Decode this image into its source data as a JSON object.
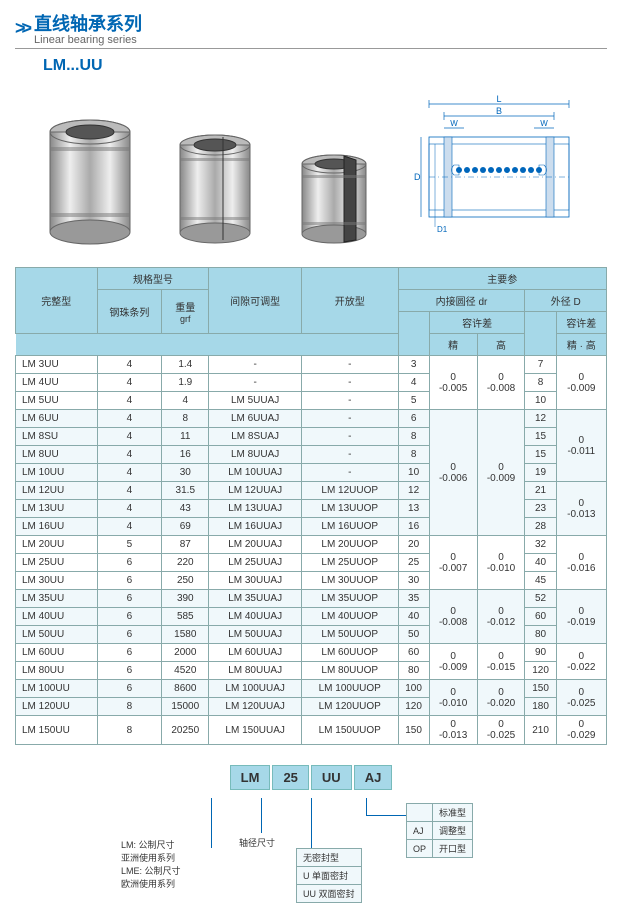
{
  "header": {
    "title_cn": "直线轴承系列",
    "title_en": "Linear bearing series",
    "model": "LM...UU"
  },
  "diagram_labels": {
    "L": "L",
    "B": "B",
    "W": "W",
    "D": "D",
    "D1": "D1"
  },
  "table": {
    "headers": {
      "complete": "完整型",
      "spec_model": "规格型号",
      "adjustable": "间隙可调型",
      "open": "开放型",
      "main_param": "主要参",
      "ball_rows": "钢珠条列",
      "weight": "重量",
      "weight_unit": "grf",
      "inner_dia": "内接圆径   dr",
      "outer_dia": "外径   D",
      "tolerance": "容许差",
      "precision": "精",
      "high": "高",
      "prec_high": "精 · 高"
    },
    "rows": [
      {
        "m": "LM 3UU",
        "b": "4",
        "w": "1.4",
        "aj": "-",
        "op": "-",
        "dr": "3",
        "d": "7"
      },
      {
        "m": "LM 4UU",
        "b": "4",
        "w": "1.9",
        "aj": "-",
        "op": "-",
        "dr": "4",
        "d": "8"
      },
      {
        "m": "LM 5UU",
        "b": "4",
        "w": "4",
        "aj": "LM 5UUAJ",
        "op": "-",
        "dr": "5",
        "d": "10"
      },
      {
        "m": "LM 6UU",
        "b": "4",
        "w": "8",
        "aj": "LM 6UUAJ",
        "op": "-",
        "dr": "6",
        "d": "12"
      },
      {
        "m": "LM 8SU",
        "b": "4",
        "w": "11",
        "aj": "LM 8SUAJ",
        "op": "-",
        "dr": "8",
        "d": "15"
      },
      {
        "m": "LM 8UU",
        "b": "4",
        "w": "16",
        "aj": "LM 8UUAJ",
        "op": "-",
        "dr": "8",
        "d": "15"
      },
      {
        "m": "LM 10UU",
        "b": "4",
        "w": "30",
        "aj": "LM 10UUAJ",
        "op": "-",
        "dr": "10",
        "d": "19"
      },
      {
        "m": "LM 12UU",
        "b": "4",
        "w": "31.5",
        "aj": "LM 12UUAJ",
        "op": "LM 12UUOP",
        "dr": "12",
        "d": "21"
      },
      {
        "m": "LM 13UU",
        "b": "4",
        "w": "43",
        "aj": "LM 13UUAJ",
        "op": "LM 13UUOP",
        "dr": "13",
        "d": "23"
      },
      {
        "m": "LM 16UU",
        "b": "4",
        "w": "69",
        "aj": "LM 16UUAJ",
        "op": "LM 16UUOP",
        "dr": "16",
        "d": "28"
      },
      {
        "m": "LM 20UU",
        "b": "5",
        "w": "87",
        "aj": "LM 20UUAJ",
        "op": "LM 20UUOP",
        "dr": "20",
        "d": "32"
      },
      {
        "m": "LM 25UU",
        "b": "6",
        "w": "220",
        "aj": "LM 25UUAJ",
        "op": "LM 25UUOP",
        "dr": "25",
        "d": "40"
      },
      {
        "m": "LM 30UU",
        "b": "6",
        "w": "250",
        "aj": "LM 30UUAJ",
        "op": "LM 30UUOP",
        "dr": "30",
        "d": "45"
      },
      {
        "m": "LM 35UU",
        "b": "6",
        "w": "390",
        "aj": "LM 35UUAJ",
        "op": "LM 35UUOP",
        "dr": "35",
        "d": "52"
      },
      {
        "m": "LM 40UU",
        "b": "6",
        "w": "585",
        "aj": "LM 40UUAJ",
        "op": "LM 40UUOP",
        "dr": "40",
        "d": "60"
      },
      {
        "m": "LM 50UU",
        "b": "6",
        "w": "1580",
        "aj": "LM 50UUAJ",
        "op": "LM 50UUOP",
        "dr": "50",
        "d": "80"
      },
      {
        "m": "LM 60UU",
        "b": "6",
        "w": "2000",
        "aj": "LM 60UUAJ",
        "op": "LM 60UUOP",
        "dr": "60",
        "d": "90"
      },
      {
        "m": "LM 80UU",
        "b": "6",
        "w": "4520",
        "aj": "LM 80UUAJ",
        "op": "LM 80UUOP",
        "dr": "80",
        "d": "120"
      },
      {
        "m": "LM 100UU",
        "b": "6",
        "w": "8600",
        "aj": "LM 100UUAJ",
        "op": "LM 100UUOP",
        "dr": "100",
        "d": "150"
      },
      {
        "m": "LM 120UU",
        "b": "8",
        "w": "15000",
        "aj": "LM 120UUAJ",
        "op": "LM 120UUOP",
        "dr": "120",
        "d": "180"
      },
      {
        "m": "LM 150UU",
        "b": "8",
        "w": "20250",
        "aj": "LM 150UUAJ",
        "op": "LM 150UUOP",
        "dr": "150",
        "d": "210"
      }
    ],
    "tol_groups": [
      {
        "start": 0,
        "span": 3,
        "p1": "0",
        "p2": "-0.005",
        "h1": "0",
        "h2": "-0.008",
        "dp": "0",
        "dh": "-0.009"
      },
      {
        "start": 3,
        "span": 7,
        "p1": "0",
        "p2": "-0.006",
        "h1": "0",
        "h2": "-0.009",
        "dp": "0",
        "dh": "-0.011",
        "dp2": "0",
        "dh2": "-0.013",
        "split": 4
      },
      {
        "start": 10,
        "span": 3,
        "p1": "0",
        "p2": "-0.007",
        "h1": "0",
        "h2": "-0.010",
        "dp": "0",
        "dh": "-0.016"
      },
      {
        "start": 13,
        "span": 3,
        "p1": "0",
        "p2": "-0.008",
        "h1": "0",
        "h2": "-0.012",
        "dp": "0",
        "dh": "-0.019"
      },
      {
        "start": 16,
        "span": 2,
        "p1": "0",
        "p2": "-0.009",
        "h1": "0",
        "h2": "-0.015",
        "dp": "0",
        "dh": "-0.022"
      },
      {
        "start": 18,
        "span": 2,
        "p1": "0",
        "p2": "-0.010",
        "h1": "0",
        "h2": "-0.020",
        "dp": "0",
        "dh": "-0.025"
      },
      {
        "start": 20,
        "span": 1,
        "p1": "0",
        "p2": "-0.013",
        "h1": "0",
        "h2": "-0.025",
        "dp": "0",
        "dh": "-0.029"
      }
    ]
  },
  "breakdown": {
    "codes": [
      "LM",
      "25",
      "UU",
      "AJ"
    ],
    "labels": {
      "lm1": "LM: 公制尺寸",
      "lm2": "亚洲使用系列",
      "lm3": "LME: 公制尺寸",
      "lm4": "欧洲使用系列",
      "size": "轴径尺寸",
      "seal1": "无密封型",
      "seal2": "U  单面密封",
      "seal3": "UU 双面密封",
      "type_hdr": "标准型",
      "aj": "AJ",
      "aj_t": "调整型",
      "op": "OP",
      "op_t": "开口型"
    }
  },
  "colors": {
    "header_bg": "#a6d8e8",
    "border": "#8aa",
    "accent": "#0066b3",
    "band": "#f0f8fb"
  }
}
